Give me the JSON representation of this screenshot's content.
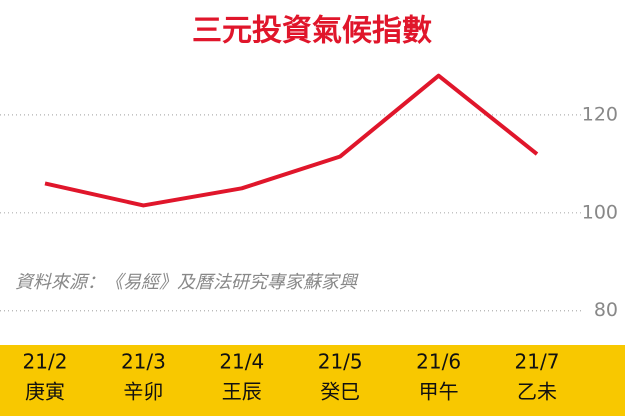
{
  "chart_data": {
    "type": "line",
    "title": "三元投資氣候指數",
    "categories": [
      "21/2",
      "21/3",
      "21/4",
      "21/5",
      "21/6",
      "21/7"
    ],
    "category_sublabels": [
      "庚寅",
      "辛卯",
      "王辰",
      "癸巳",
      "甲午",
      "乙未"
    ],
    "values": [
      106,
      101.5,
      105,
      111.5,
      128,
      112
    ],
    "color": "#e0162b",
    "ylim": [
      73,
      131
    ],
    "yticks": [
      80,
      100,
      120
    ],
    "grid": true,
    "annotation": "資料來源：《易經》及曆法研究專家蘇家興"
  }
}
